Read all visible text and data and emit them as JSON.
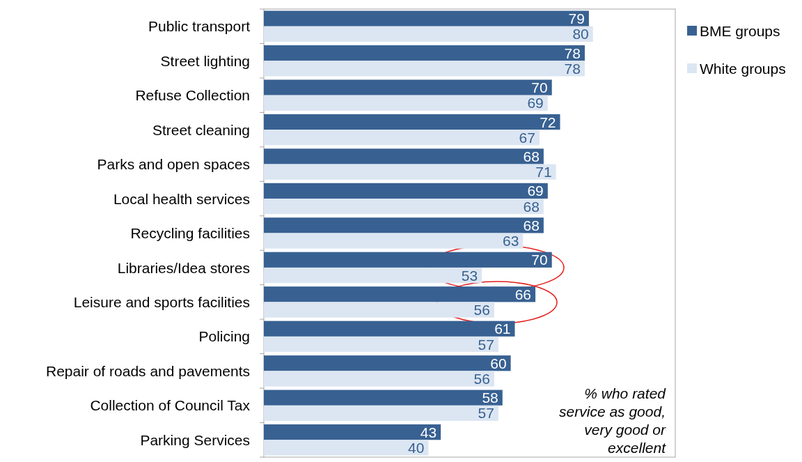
{
  "chart_data": {
    "type": "bar",
    "orientation": "horizontal",
    "categories": [
      "Public transport",
      "Street lighting",
      "Refuse Collection",
      "Street cleaning",
      "Parks and open spaces",
      "Local health services",
      "Recycling facilities",
      "Libraries/Idea stores",
      "Leisure and sports facilities",
      "Policing",
      "Repair of roads and pavements",
      "Collection of Council Tax",
      "Parking Services"
    ],
    "series": [
      {
        "name": "BME groups",
        "color": "#386192",
        "values": [
          79,
          78,
          70,
          72,
          68,
          69,
          68,
          70,
          66,
          61,
          60,
          58,
          43
        ]
      },
      {
        "name": "White groups",
        "color": "#dce6f2",
        "values": [
          80,
          78,
          69,
          67,
          71,
          68,
          63,
          53,
          56,
          57,
          56,
          57,
          40
        ]
      }
    ],
    "xlim": [
      0,
      100
    ],
    "tick_labels": "y",
    "data_labels": true,
    "legend": "right",
    "grid": false,
    "annotations": [
      "% who rated service as good, very good or excellent"
    ]
  }
}
